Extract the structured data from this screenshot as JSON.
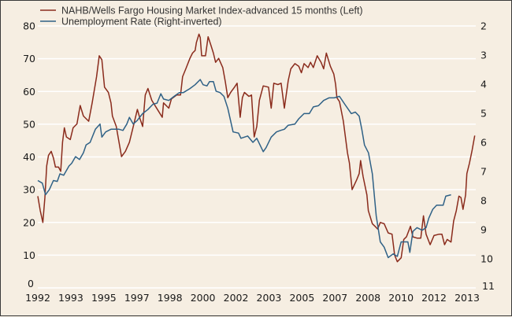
{
  "chart_data": {
    "type": "line",
    "title": "",
    "legend_placement": "top-left",
    "legend": [
      {
        "label": "NAHB/Wells Fargo Housing Market Index-advanced 15 months (Left)",
        "color": "#8a2b1c"
      },
      {
        "label": "Unemployment Rate (Right-inverted)",
        "color": "#2f6186"
      }
    ],
    "x_tick_labels": [
      "1992",
      "1993",
      "1995",
      "1997",
      "1998",
      "2000",
      "2002",
      "2003",
      "2005",
      "2007",
      "2008",
      "2010",
      "2012",
      "2013"
    ],
    "xlim": [
      1992.0,
      2013.6
    ],
    "y_left": {
      "ticks": [
        "0",
        "10",
        "20",
        "30",
        "40",
        "50",
        "60",
        "70",
        "80"
      ],
      "lim": [
        0,
        80
      ]
    },
    "y_right": {
      "ticks": [
        "2",
        "3",
        "4",
        "5",
        "6",
        "7",
        "8",
        "9",
        "10",
        "11"
      ],
      "lim": [
        2,
        11
      ],
      "inverted": true
    },
    "grid": true,
    "series": [
      {
        "name": "NAHB/Wells Fargo Housing Market Index-advanced 15 months (Left)",
        "axis": "left",
        "color": "#8a2b1c",
        "x": [
          1992.0,
          1992.12,
          1992.25,
          1992.35,
          1992.44,
          1992.53,
          1992.66,
          1992.77,
          1992.87,
          1993.02,
          1993.13,
          1993.22,
          1993.31,
          1993.41,
          1993.6,
          1993.74,
          1993.93,
          1994.09,
          1994.25,
          1994.51,
          1994.68,
          1994.9,
          1995.03,
          1995.16,
          1995.29,
          1995.48,
          1995.61,
          1995.68,
          1995.87,
          1996.13,
          1996.32,
          1996.52,
          1996.71,
          1996.91,
          1997.04,
          1997.17,
          1997.3,
          1997.43,
          1997.62,
          1997.82,
          1997.94,
          1998.14,
          1998.2,
          1998.46,
          1998.59,
          1998.85,
          1999.04,
          1999.14,
          1999.3,
          1999.5,
          1999.63,
          1999.76,
          1999.82,
          1999.95,
          2000.01,
          2000.08,
          2000.27,
          2000.4,
          2000.54,
          2000.66,
          2000.77,
          2000.92,
          2001.12,
          2001.25,
          2001.37,
          2001.51,
          2001.7,
          2001.83,
          2001.98,
          2002.09,
          2002.19,
          2002.41,
          2002.54,
          2002.67,
          2002.8,
          2002.93,
          2003.12,
          2003.38,
          2003.51,
          2003.64,
          2003.84,
          2004.0,
          2004.16,
          2004.35,
          2004.48,
          2004.68,
          2004.87,
          2005.0,
          2005.13,
          2005.33,
          2005.45,
          2005.59,
          2005.78,
          2005.97,
          2006.1,
          2006.23,
          2006.43,
          2006.6,
          2006.69,
          2006.75,
          2006.88,
          2007.07,
          2007.27,
          2007.37,
          2007.5,
          2007.72,
          2007.85,
          2007.92,
          2008.04,
          2008.23,
          2008.3,
          2008.5,
          2008.63,
          2008.76,
          2008.89,
          2009.08,
          2009.28,
          2009.47,
          2009.6,
          2009.73,
          2009.92,
          2010.05,
          2010.18,
          2010.38,
          2010.5,
          2010.7,
          2010.89,
          2011.02,
          2011.15,
          2011.35,
          2011.54,
          2011.8,
          2011.93,
          2012.06,
          2012.19,
          2012.38,
          2012.51,
          2012.64,
          2012.77,
          2012.87,
          2012.97,
          2013.1,
          2013.16,
          2013.29,
          2013.42,
          2013.55
        ],
        "values": [
          28.0,
          23.6,
          20.0,
          27.6,
          37.3,
          40.5,
          41.7,
          39.7,
          36.9,
          36.9,
          35.6,
          44.5,
          48.9,
          46.1,
          45.3,
          48.9,
          50.1,
          55.7,
          52.5,
          50.9,
          56.5,
          64.5,
          70.9,
          69.7,
          61.3,
          59.7,
          56.5,
          52.5,
          49.3,
          40.1,
          41.7,
          44.5,
          49.3,
          54.5,
          51.7,
          49.3,
          58.9,
          60.9,
          57.3,
          55.3,
          54.1,
          52.1,
          56.5,
          54.9,
          57.7,
          58.9,
          58.9,
          64.5,
          66.9,
          70.1,
          71.7,
          72.5,
          74.9,
          77.5,
          76.5,
          70.9,
          70.9,
          76.7,
          74.1,
          71.7,
          68.9,
          70.1,
          67.3,
          62.9,
          58.1,
          59.7,
          61.3,
          62.5,
          52.1,
          58.1,
          59.7,
          58.5,
          58.9,
          46.1,
          49.3,
          57.3,
          61.7,
          61.3,
          54.9,
          62.5,
          62.1,
          62.5,
          54.9,
          63.3,
          66.9,
          68.5,
          67.7,
          65.7,
          68.5,
          67.3,
          68.9,
          67.3,
          70.9,
          68.9,
          66.9,
          71.7,
          67.7,
          65.3,
          62.1,
          58.1,
          56.9,
          50.9,
          41.3,
          38.1,
          30.0,
          32.9,
          34.9,
          38.9,
          34.1,
          28.4,
          23.6,
          19.6,
          18.8,
          18.0,
          20.0,
          19.6,
          16.8,
          16.4,
          10.0,
          8.0,
          9.2,
          14.8,
          15.6,
          18.8,
          15.6,
          15.2,
          15.2,
          22.0,
          16.4,
          13.2,
          16.0,
          16.4,
          16.4,
          13.2,
          14.8,
          14.0,
          20.4,
          23.6,
          28.0,
          27.6,
          24.0,
          28.4,
          34.9,
          38.1,
          42.1,
          46.5
        ]
      },
      {
        "name": "Unemployment Rate (Right-inverted)",
        "axis": "right",
        "color": "#2f6186",
        "x": [
          1992.0,
          1992.22,
          1992.38,
          1992.57,
          1992.77,
          1992.96,
          1993.09,
          1993.28,
          1993.54,
          1993.67,
          1993.86,
          1994.06,
          1994.25,
          1994.38,
          1994.58,
          1994.84,
          1995.07,
          1995.16,
          1995.35,
          1995.61,
          1996.0,
          1996.2,
          1996.39,
          1996.52,
          1996.71,
          1996.91,
          1997.17,
          1997.43,
          1997.68,
          1997.88,
          1998.07,
          1998.2,
          1998.46,
          1998.72,
          1998.98,
          1999.18,
          1999.5,
          1999.76,
          2000.01,
          2000.15,
          2000.34,
          2000.47,
          2000.66,
          2000.79,
          2000.99,
          2001.18,
          2001.37,
          2001.63,
          2001.9,
          2002.02,
          2002.35,
          2002.61,
          2002.8,
          2003.12,
          2003.26,
          2003.51,
          2003.77,
          2003.97,
          2004.16,
          2004.35,
          2004.68,
          2004.87,
          2005.13,
          2005.39,
          2005.59,
          2005.84,
          2006.1,
          2006.36,
          2006.62,
          2006.88,
          2007.14,
          2007.46,
          2007.66,
          2007.85,
          2007.98,
          2008.11,
          2008.31,
          2008.5,
          2008.69,
          2008.89,
          2009.08,
          2009.28,
          2009.53,
          2009.73,
          2009.92,
          2010.25,
          2010.35,
          2010.5,
          2010.7,
          2010.96,
          2011.15,
          2011.28,
          2011.48,
          2011.67,
          2011.99,
          2012.12,
          2012.38
        ],
        "values": [
          7.31,
          7.4,
          7.8,
          7.62,
          7.31,
          7.34,
          7.08,
          7.13,
          6.81,
          6.72,
          6.49,
          6.59,
          6.36,
          6.09,
          6.0,
          5.55,
          5.37,
          5.82,
          5.64,
          5.55,
          5.55,
          5.59,
          5.37,
          5.14,
          5.37,
          5.24,
          5.01,
          4.87,
          4.69,
          4.65,
          4.33,
          4.51,
          4.56,
          4.42,
          4.29,
          4.29,
          4.15,
          4.02,
          3.84,
          4.02,
          4.06,
          3.91,
          3.91,
          4.24,
          4.29,
          4.42,
          4.83,
          5.64,
          5.68,
          5.86,
          5.78,
          6.0,
          5.86,
          6.32,
          6.18,
          5.82,
          5.64,
          5.59,
          5.55,
          5.41,
          5.37,
          5.19,
          5.01,
          5.01,
          4.78,
          4.74,
          4.56,
          4.47,
          4.47,
          4.42,
          4.69,
          5.01,
          4.96,
          5.1,
          5.55,
          6.09,
          6.36,
          7.08,
          8.52,
          9.42,
          9.6,
          9.96,
          9.83,
          9.92,
          9.42,
          9.42,
          9.78,
          9.06,
          8.93,
          9.02,
          8.93,
          8.61,
          8.3,
          8.16,
          8.16,
          7.85,
          7.8
        ]
      }
    ]
  }
}
